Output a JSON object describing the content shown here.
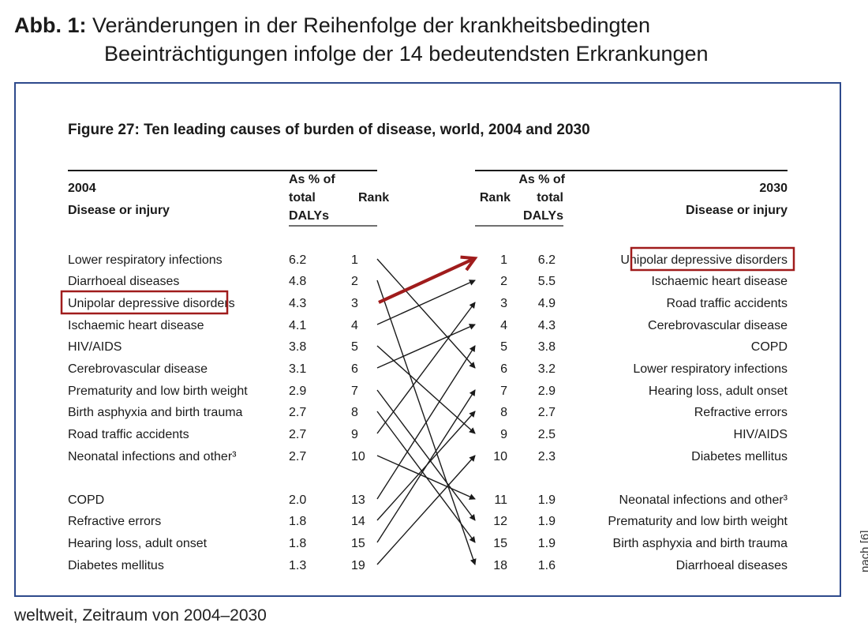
{
  "caption": {
    "label": "Abb. 1:",
    "line1": "Veränderungen in der Reihenfolge der krankheitsbedingten",
    "line2": "Beeinträchtigungen infolge der 14 bedeutendsten Erkrankungen"
  },
  "side_note": "nach [6]",
  "footer_note": "weltweit, Zeitraum von 2004–2030",
  "colors": {
    "highlight": "#a01c1c",
    "frame": "#2e4a8c",
    "ink": "#1a1a1a"
  },
  "chart_data": {
    "type": "table",
    "title": "Figure 27: Ten leading causes of burden of disease, world, 2004 and 2030",
    "highlight_disease": "Unipolar depressive disorders",
    "left": {
      "year": "2004",
      "disease_header": "Disease or injury",
      "pct_header": [
        "As % of",
        "total",
        "DALYs"
      ],
      "rank_header": "Rank",
      "rows": [
        {
          "disease": "Lower respiratory infections",
          "pct": "6.2",
          "rank": "1"
        },
        {
          "disease": "Diarrhoeal diseases",
          "pct": "4.8",
          "rank": "2"
        },
        {
          "disease": "Unipolar depressive disorders",
          "pct": "4.3",
          "rank": "3"
        },
        {
          "disease": "Ischaemic heart disease",
          "pct": "4.1",
          "rank": "4"
        },
        {
          "disease": "HIV/AIDS",
          "pct": "3.8",
          "rank": "5"
        },
        {
          "disease": "Cerebrovascular disease",
          "pct": "3.1",
          "rank": "6"
        },
        {
          "disease": "Prematurity and low birth weight",
          "pct": "2.9",
          "rank": "7"
        },
        {
          "disease": "Birth asphyxia and birth trauma",
          "pct": "2.7",
          "rank": "8"
        },
        {
          "disease": "Road traffic accidents",
          "pct": "2.7",
          "rank": "9"
        },
        {
          "disease": "Neonatal infections and other³",
          "pct": "2.7",
          "rank": "10"
        },
        {
          "disease": "COPD",
          "pct": "2.0",
          "rank": "13"
        },
        {
          "disease": "Refractive errors",
          "pct": "1.8",
          "rank": "14"
        },
        {
          "disease": "Hearing loss, adult onset",
          "pct": "1.8",
          "rank": "15"
        },
        {
          "disease": "Diabetes mellitus",
          "pct": "1.3",
          "rank": "19"
        }
      ]
    },
    "right": {
      "year": "2030",
      "disease_header": "Disease or injury",
      "pct_header": [
        "As % of",
        "total",
        "DALYs"
      ],
      "rank_header": "Rank",
      "rows": [
        {
          "rank": "1",
          "pct": "6.2",
          "disease": "Unipolar depressive disorders"
        },
        {
          "rank": "2",
          "pct": "5.5",
          "disease": "Ischaemic heart disease"
        },
        {
          "rank": "3",
          "pct": "4.9",
          "disease": "Road traffic accidents"
        },
        {
          "rank": "4",
          "pct": "4.3",
          "disease": "Cerebrovascular disease"
        },
        {
          "rank": "5",
          "pct": "3.8",
          "disease": "COPD"
        },
        {
          "rank": "6",
          "pct": "3.2",
          "disease": "Lower respiratory infections"
        },
        {
          "rank": "7",
          "pct": "2.9",
          "disease": "Hearing loss, adult onset"
        },
        {
          "rank": "8",
          "pct": "2.7",
          "disease": "Refractive errors"
        },
        {
          "rank": "9",
          "pct": "2.5",
          "disease": "HIV/AIDS"
        },
        {
          "rank": "10",
          "pct": "2.3",
          "disease": "Diabetes mellitus"
        },
        {
          "rank": "11",
          "pct": "1.9",
          "disease": "Neonatal infections and other³"
        },
        {
          "rank": "12",
          "pct": "1.9",
          "disease": "Prematurity and low birth weight"
        },
        {
          "rank": "15",
          "pct": "1.9",
          "disease": "Birth asphyxia and birth trauma"
        },
        {
          "rank": "18",
          "pct": "1.6",
          "disease": "Diarrhoeal diseases"
        }
      ]
    }
  }
}
